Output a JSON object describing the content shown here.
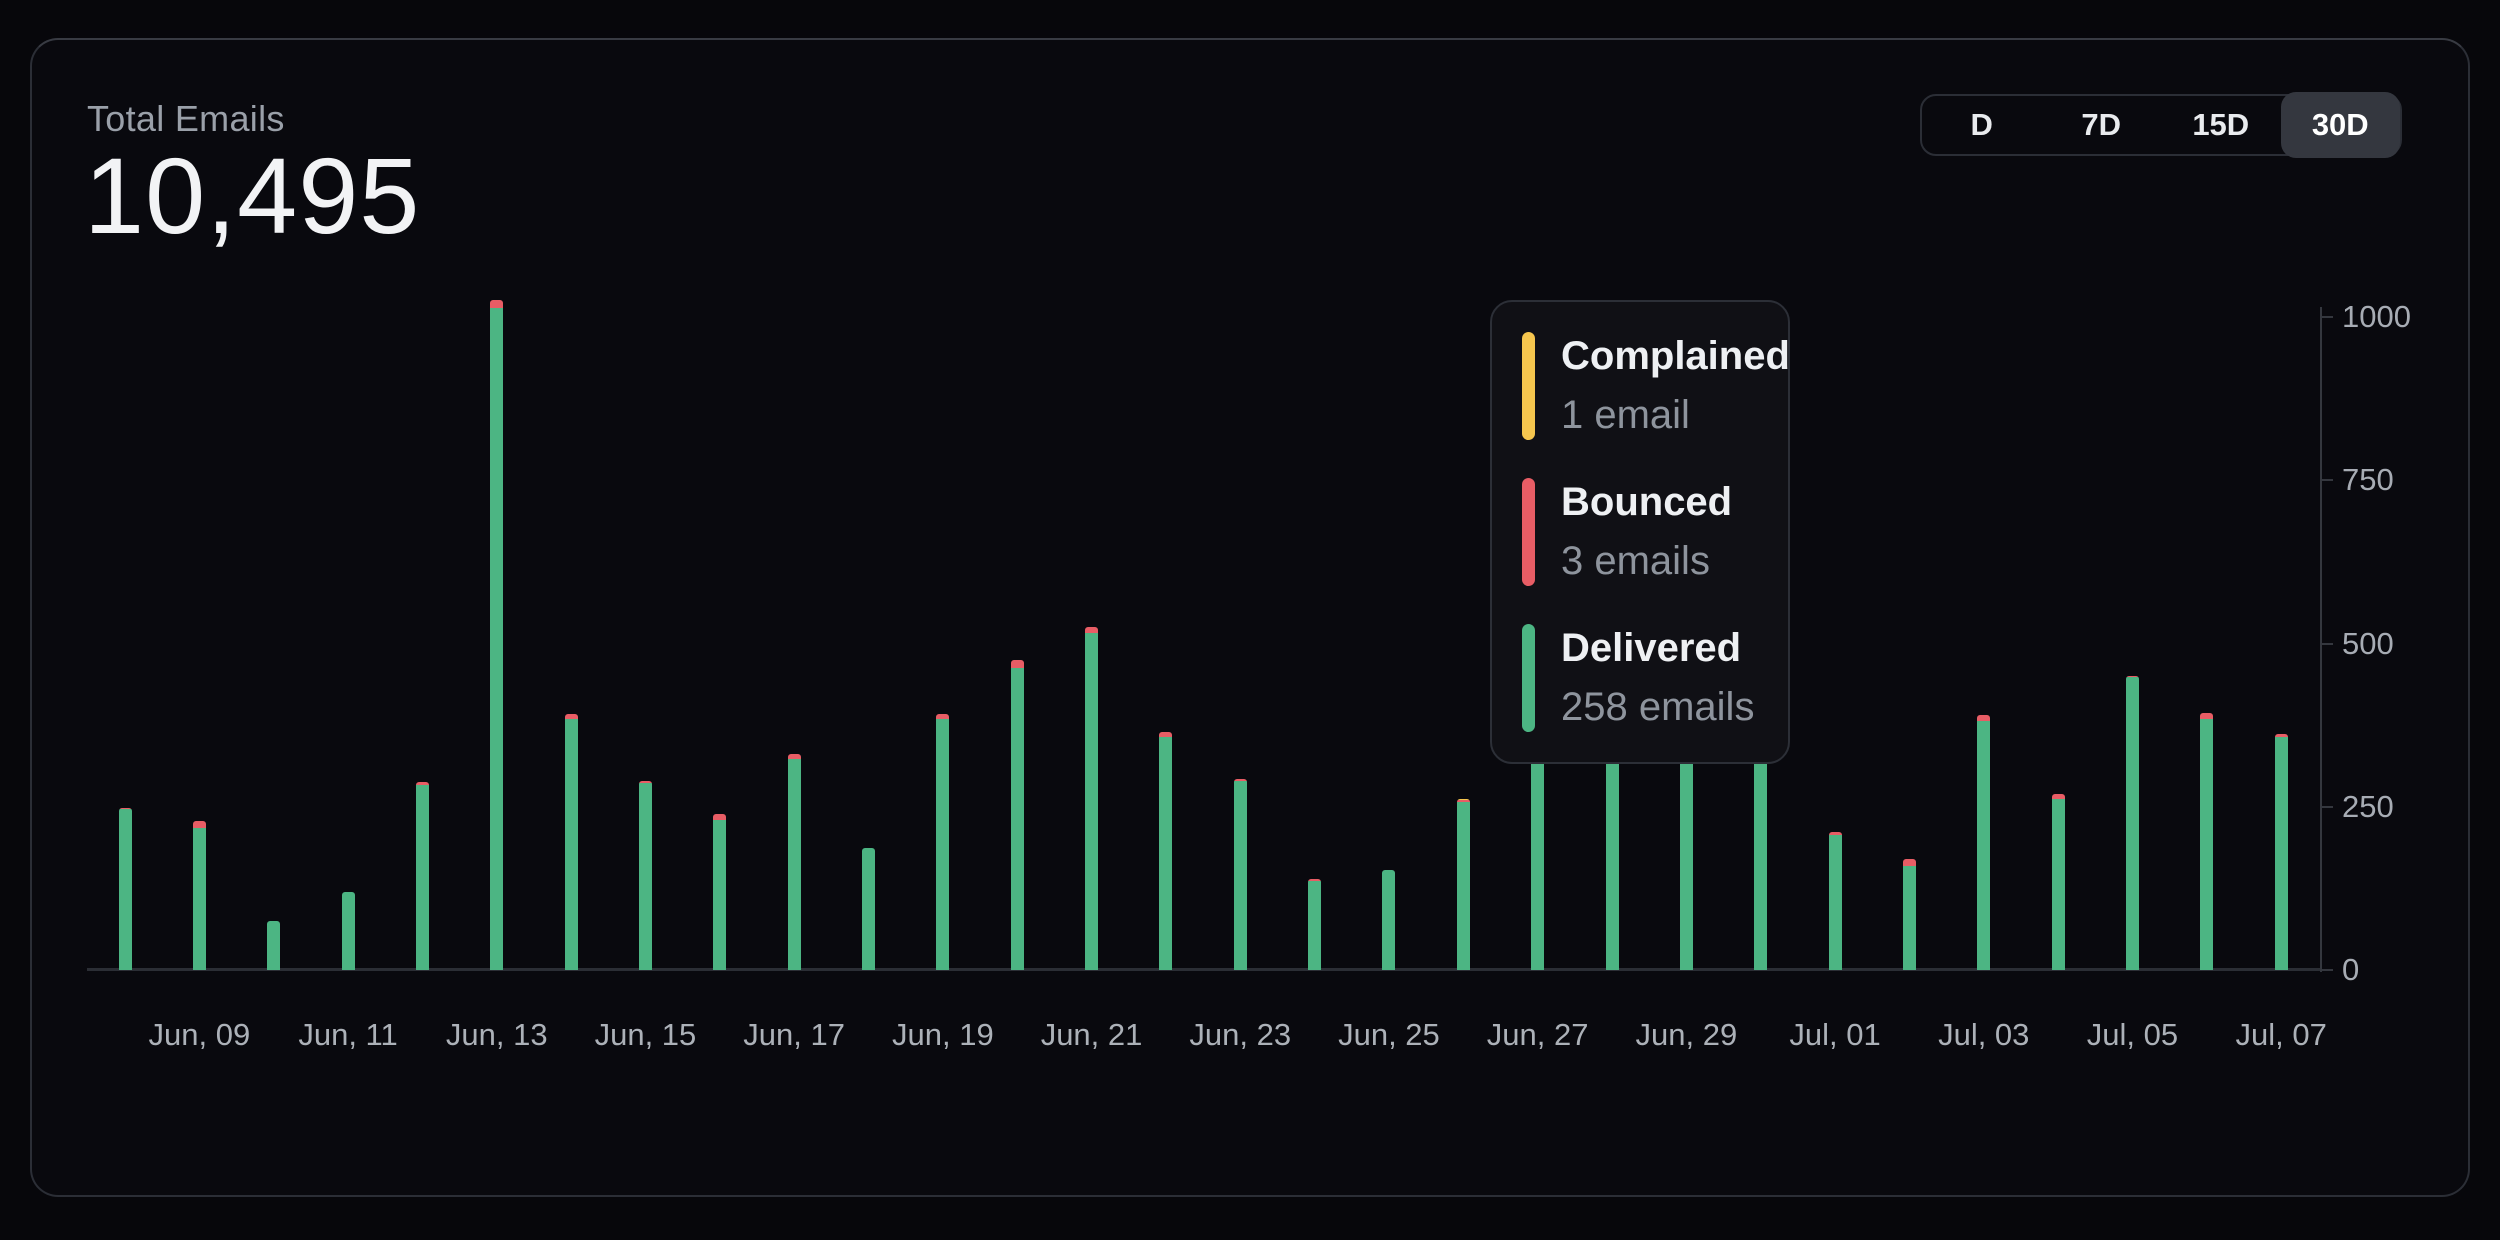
{
  "header": {
    "label": "Total Emails",
    "value": "10,495"
  },
  "time_range": {
    "options": [
      {
        "label": "D"
      },
      {
        "label": "7D"
      },
      {
        "label": "15D"
      },
      {
        "label": "30D"
      }
    ],
    "active": "30D"
  },
  "tooltip": {
    "items": [
      {
        "name": "Complained",
        "value": "1 email",
        "color": "#f6c64e"
      },
      {
        "name": "Bounced",
        "value": "3 emails",
        "color": "#e85d65"
      },
      {
        "name": "Delivered",
        "value": "258 emails",
        "color": "#4cb583"
      }
    ]
  },
  "chart_data": {
    "type": "bar",
    "stacked": true,
    "title": "Total Emails per day",
    "ylim": [
      0,
      1000
    ],
    "yticks": [
      0,
      250,
      500,
      750,
      1000
    ],
    "grid": false,
    "legend_position": "tooltip-overlay",
    "series_order": [
      "delivered",
      "bounced",
      "complained"
    ],
    "colors": {
      "delivered": "#4cb583",
      "bounced": "#e85d65",
      "complained": "#f6c64e"
    },
    "x_tick_labels": [
      "Jun, 09",
      "Jun, 11",
      "Jun, 13",
      "Jun, 15",
      "Jun, 17",
      "Jun, 19",
      "Jun, 21",
      "Jun, 23",
      "Jun, 25",
      "Jun, 27",
      "Jun, 29",
      "Jul, 01",
      "Jul, 03",
      "Jul, 05",
      "Jul, 07"
    ],
    "hovered_date": "Jun, 26",
    "days": [
      {
        "date": "Jun, 08",
        "delivered": 246,
        "bounced": 2,
        "complained": 0
      },
      {
        "date": "Jun, 09",
        "delivered": 218,
        "bounced": 10,
        "complained": 0
      },
      {
        "date": "Jun, 10",
        "delivered": 75,
        "bounced": 0,
        "complained": 0
      },
      {
        "date": "Jun, 11",
        "delivered": 119,
        "bounced": 0,
        "complained": 0
      },
      {
        "date": "Jun, 12",
        "delivered": 283,
        "bounced": 5,
        "complained": 0
      },
      {
        "date": "Jun, 13",
        "delivered": 1014,
        "bounced": 12,
        "complained": 0
      },
      {
        "date": "Jun, 14",
        "delivered": 384,
        "bounced": 8,
        "complained": 0
      },
      {
        "date": "Jun, 15",
        "delivered": 286,
        "bounced": 4,
        "complained": 0
      },
      {
        "date": "Jun, 16",
        "delivered": 229,
        "bounced": 10,
        "complained": 0
      },
      {
        "date": "Jun, 17",
        "delivered": 323,
        "bounced": 8,
        "complained": 0
      },
      {
        "date": "Jun, 18",
        "delivered": 187,
        "bounced": 0,
        "complained": 0
      },
      {
        "date": "Jun, 19",
        "delivered": 384,
        "bounced": 8,
        "complained": 0
      },
      {
        "date": "Jun, 20",
        "delivered": 463,
        "bounced": 12,
        "complained": 0
      },
      {
        "date": "Jun, 21",
        "delivered": 516,
        "bounced": 10,
        "complained": 0
      },
      {
        "date": "Jun, 22",
        "delivered": 357,
        "bounced": 8,
        "complained": 0
      },
      {
        "date": "Jun, 23",
        "delivered": 289,
        "bounced": 4,
        "complained": 0
      },
      {
        "date": "Jun, 24",
        "delivered": 136,
        "bounced": 4,
        "complained": 0
      },
      {
        "date": "Jun, 25",
        "delivered": 153,
        "bounced": 0,
        "complained": 0
      },
      {
        "date": "Jun, 26",
        "delivered": 258,
        "bounced": 3,
        "complained": 1
      },
      {
        "date": "Jun, 27",
        "delivered": 554,
        "bounced": 6,
        "complained": 0
      },
      {
        "date": "Jun, 28",
        "delivered": 574,
        "bounced": 6,
        "complained": 0
      },
      {
        "date": "Jun, 29",
        "delivered": 535,
        "bounced": 5,
        "complained": 0
      },
      {
        "date": "Jun, 30",
        "delivered": 533,
        "bounced": 5,
        "complained": 0
      },
      {
        "date": "Jul, 01",
        "delivered": 207,
        "bounced": 5,
        "complained": 0
      },
      {
        "date": "Jul, 02",
        "delivered": 160,
        "bounced": 10,
        "complained": 0
      },
      {
        "date": "Jul, 03",
        "delivered": 382,
        "bounced": 8,
        "complained": 0
      },
      {
        "date": "Jul, 04",
        "delivered": 262,
        "bounced": 8,
        "complained": 0
      },
      {
        "date": "Jul, 05",
        "delivered": 448,
        "bounced": 3,
        "complained": 0
      },
      {
        "date": "Jul, 06",
        "delivered": 385,
        "bounced": 8,
        "complained": 0
      },
      {
        "date": "Jul, 07",
        "delivered": 357,
        "bounced": 5,
        "complained": 0
      }
    ]
  }
}
